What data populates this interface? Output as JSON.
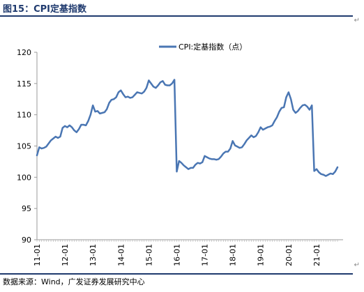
{
  "figure": {
    "title": "图15：CPI定基指数",
    "source": "数据来源：Wind，广发证券发展研究中心"
  },
  "chart_data": {
    "type": "line",
    "title": "",
    "xlabel": "",
    "ylabel": "",
    "ylim": [
      90,
      120
    ],
    "yticks": [
      90,
      95,
      100,
      105,
      110,
      115,
      120
    ],
    "grid": false,
    "legend": "top-center",
    "x_tick_labels": [
      "11-01",
      "12-01",
      "13-01",
      "14-01",
      "15-01",
      "16-01",
      "17-01",
      "18-01",
      "19-01",
      "20-01",
      "21-01"
    ],
    "series_color": "#4a76b3",
    "series": [
      {
        "name": "CPI:定基指数（点）",
        "x": [
          "11-01",
          "11-02",
          "11-03",
          "11-04",
          "11-05",
          "11-06",
          "11-07",
          "11-08",
          "11-09",
          "11-10",
          "11-11",
          "11-12",
          "12-01",
          "12-02",
          "12-03",
          "12-04",
          "12-05",
          "12-06",
          "12-07",
          "12-08",
          "12-09",
          "12-10",
          "12-11",
          "12-12",
          "13-01",
          "13-02",
          "13-03",
          "13-04",
          "13-05",
          "13-06",
          "13-07",
          "13-08",
          "13-09",
          "13-10",
          "13-11",
          "13-12",
          "14-01",
          "14-02",
          "14-03",
          "14-04",
          "14-05",
          "14-06",
          "14-07",
          "14-08",
          "14-09",
          "14-10",
          "14-11",
          "14-12",
          "15-01",
          "15-02",
          "15-03",
          "15-04",
          "15-05",
          "15-06",
          "15-07",
          "15-08",
          "15-09",
          "15-10",
          "15-11",
          "15-12",
          "16-01",
          "16-02",
          "16-03",
          "16-04",
          "16-05",
          "16-06",
          "16-07",
          "16-08",
          "16-09",
          "16-10",
          "16-11",
          "16-12",
          "17-01",
          "17-02",
          "17-03",
          "17-04",
          "17-05",
          "17-06",
          "17-07",
          "17-08",
          "17-09",
          "17-10",
          "17-11",
          "17-12",
          "18-01",
          "18-02",
          "18-03",
          "18-04",
          "18-05",
          "18-06",
          "18-07",
          "18-08",
          "18-09",
          "18-10",
          "18-11",
          "18-12",
          "19-01",
          "19-02",
          "19-03",
          "19-04",
          "19-05",
          "19-06",
          "19-07",
          "19-08",
          "19-09",
          "19-10",
          "19-11",
          "19-12",
          "20-01",
          "20-02",
          "20-03",
          "20-04",
          "20-05",
          "20-06",
          "20-07",
          "20-08",
          "20-09",
          "20-10",
          "20-11",
          "20-12",
          "21-01",
          "21-02",
          "21-03",
          "21-04",
          "21-05",
          "21-06",
          "21-07",
          "21-08",
          "21-09",
          "21-10"
        ],
        "values": [
          103.5,
          104.8,
          104.6,
          104.7,
          104.9,
          105.4,
          105.9,
          106.2,
          106.5,
          106.3,
          106.5,
          107.9,
          108.2,
          108.0,
          108.3,
          108.0,
          107.5,
          107.2,
          107.7,
          108.4,
          108.4,
          108.3,
          109.0,
          110.0,
          111.5,
          110.5,
          110.6,
          110.2,
          110.3,
          110.4,
          110.9,
          111.9,
          112.4,
          112.5,
          112.8,
          113.6,
          113.9,
          113.3,
          112.8,
          112.9,
          112.7,
          112.8,
          113.2,
          113.6,
          113.5,
          113.4,
          113.7,
          114.3,
          115.5,
          115.0,
          114.5,
          114.3,
          114.7,
          115.2,
          115.4,
          114.8,
          114.7,
          114.7,
          115.0,
          115.6,
          100.9,
          102.6,
          102.3,
          101.9,
          101.6,
          101.3,
          101.5,
          101.5,
          102.0,
          102.3,
          102.2,
          102.4,
          103.4,
          103.2,
          103.0,
          102.9,
          102.9,
          102.8,
          102.9,
          103.3,
          103.8,
          104.1,
          104.1,
          104.6,
          105.8,
          105.1,
          104.9,
          104.7,
          104.8,
          105.3,
          105.9,
          106.3,
          106.7,
          106.4,
          106.6,
          107.2,
          108.0,
          107.6,
          107.8,
          108.0,
          108.1,
          108.3,
          109.0,
          109.6,
          110.5,
          111.1,
          111.2,
          112.8,
          113.6,
          112.5,
          110.8,
          110.3,
          110.6,
          111.1,
          111.5,
          111.6,
          111.3,
          110.8,
          111.5,
          101.0,
          101.3,
          100.8,
          100.5,
          100.4,
          100.2,
          100.4,
          100.6,
          100.5,
          100.9,
          101.6
        ]
      }
    ]
  },
  "marks": {
    "edge_glyph": "↵"
  }
}
